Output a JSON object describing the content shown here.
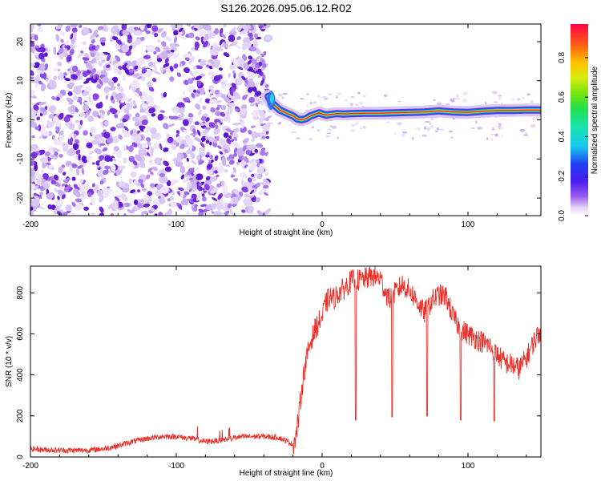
{
  "title": "S126.2026.095.06.12.R02",
  "colors": {
    "snr_line": "#e8312a",
    "speckle": "#7a30e0",
    "frame": "#000000"
  },
  "chart_data": [
    {
      "type": "heatmap",
      "name": "spectrogram",
      "xlabel": "Height of straight line (km)",
      "ylabel": "Frequency (Hz)",
      "xlim": [
        -200,
        150
      ],
      "ylim": [
        -24.5,
        24.5
      ],
      "xticks": [
        -200,
        -100,
        0,
        100
      ],
      "xtick_labels": [
        "-200",
        "-100",
        "0",
        "100"
      ],
      "yticks": [
        -20,
        -10,
        0,
        10,
        20
      ],
      "ytick_labels": [
        "-20",
        "-10",
        "0",
        "10",
        "20"
      ],
      "noise_region_x": [
        -200,
        -37
      ],
      "colorbar": {
        "label": "Normalized spectral amplitude",
        "range": [
          0,
          0.97
        ],
        "ticks": [
          0,
          0.2,
          0.4,
          0.6,
          0.8
        ],
        "tick_labels": [
          "0.0",
          "0.2",
          "0.4",
          "0.6",
          "0.8"
        ]
      },
      "signal_trace": {
        "x": [
          -37,
          -35,
          -32,
          -29,
          -26,
          -23,
          -20,
          -17,
          -14,
          -11,
          -8,
          -5,
          -2,
          0,
          3,
          6,
          10,
          15,
          20,
          30,
          40,
          50,
          60,
          70,
          80,
          90,
          100,
          110,
          120,
          130,
          140,
          150
        ],
        "y": [
          6,
          4.5,
          3.5,
          2.5,
          2.0,
          1.5,
          1.0,
          0.2,
          0.0,
          0.3,
          1.0,
          1.4,
          1.8,
          1.5,
          1.2,
          1.4,
          1.6,
          1.5,
          1.6,
          1.7,
          1.7,
          1.8,
          1.9,
          2.0,
          2.3,
          2.0,
          1.9,
          2.2,
          2.4,
          2.4,
          2.5,
          2.5
        ]
      }
    },
    {
      "type": "line",
      "name": "snr",
      "xlabel": "Height of straight line (km)",
      "ylabel": "SNR (10 * v/v)",
      "xlim": [
        -200,
        150
      ],
      "ylim": [
        0,
        930
      ],
      "xticks": [
        -200,
        -100,
        0,
        100
      ],
      "xtick_labels": [
        "-200",
        "-100",
        "0",
        "100"
      ],
      "yticks": [
        0,
        200,
        400,
        600,
        800
      ],
      "ytick_labels": [
        "0",
        "200",
        "400",
        "600",
        "800"
      ],
      "series": [
        {
          "x": [
            -200,
            -190,
            -180,
            -170,
            -160,
            -150,
            -140,
            -130,
            -120,
            -110,
            -100,
            -90,
            -80,
            -70,
            -60,
            -50,
            -40,
            -30,
            -25,
            -20,
            -18,
            -16,
            -14,
            -12,
            -10,
            -8,
            -5,
            -2,
            0,
            2,
            5,
            8,
            10,
            15,
            20,
            25,
            30,
            35,
            40,
            43,
            46,
            50,
            55,
            60,
            65,
            70,
            75,
            80,
            85,
            90,
            95,
            100,
            105,
            110,
            115,
            120,
            125,
            130,
            135,
            140,
            145,
            150
          ],
          "y": [
            40,
            35,
            33,
            32,
            33,
            40,
            55,
            75,
            90,
            100,
            100,
            90,
            75,
            80,
            95,
            100,
            100,
            95,
            80,
            60,
            100,
            200,
            330,
            430,
            500,
            560,
            620,
            660,
            680,
            740,
            780,
            770,
            790,
            820,
            860,
            860,
            870,
            880,
            870,
            810,
            770,
            800,
            840,
            810,
            760,
            700,
            760,
            790,
            780,
            680,
            620,
            600,
            580,
            560,
            540,
            500,
            460,
            450,
            430,
            480,
            560,
            620
          ]
        }
      ],
      "dips": [
        {
          "x": 23,
          "y": 180
        },
        {
          "x": 48,
          "y": 195
        },
        {
          "x": 72,
          "y": 200
        },
        {
          "x": 95,
          "y": 180
        },
        {
          "x": 118,
          "y": 175
        }
      ]
    }
  ]
}
